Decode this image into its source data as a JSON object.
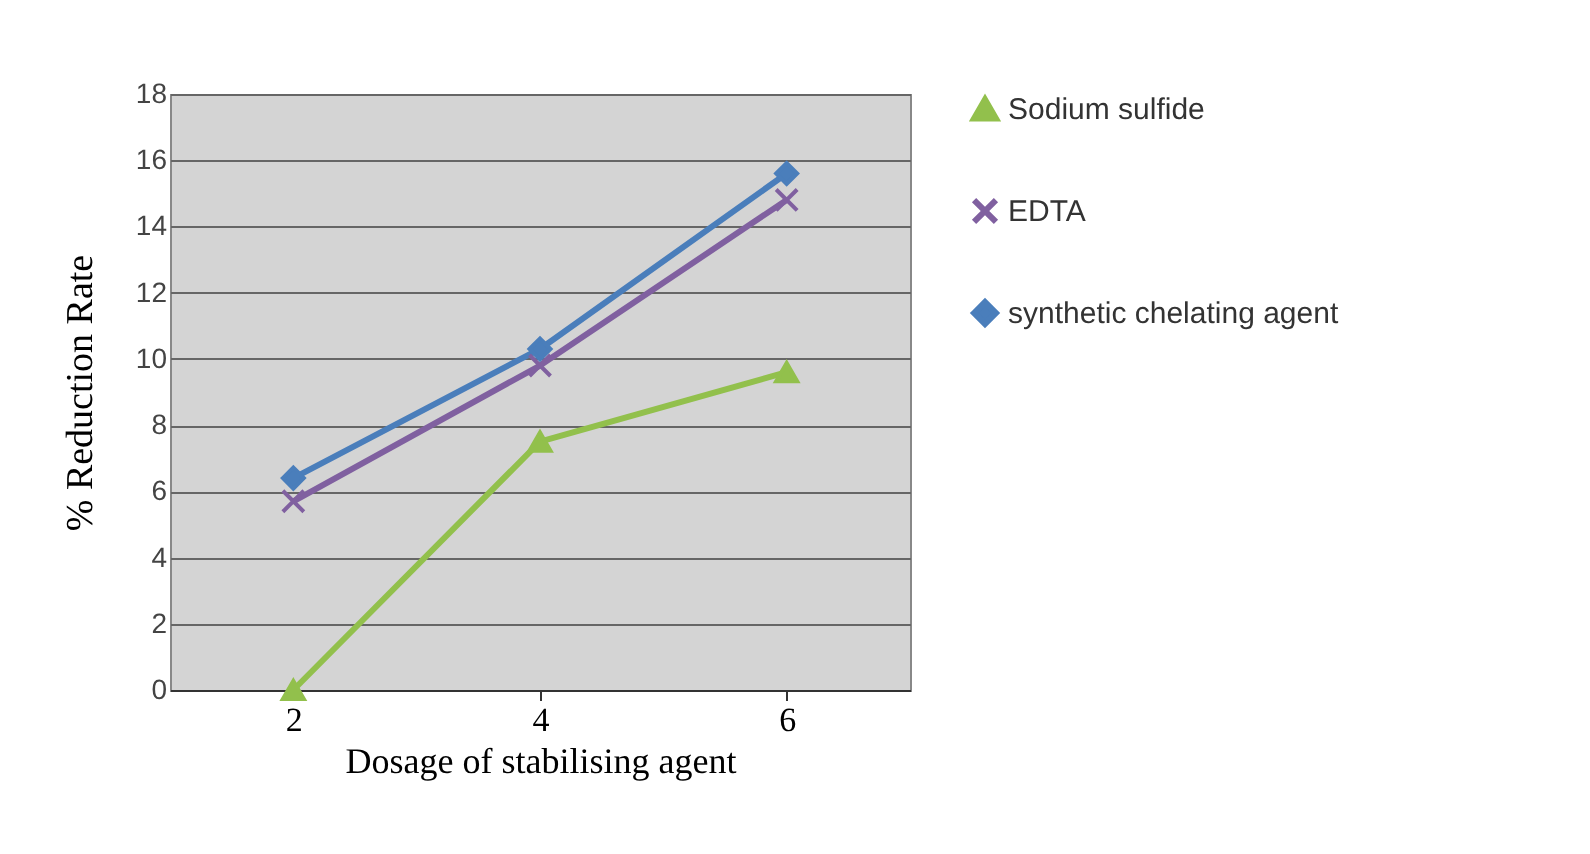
{
  "chart_data": {
    "type": "line",
    "xlabel": "Dosage of stabilising agent",
    "ylabel": "% Reduction Rate",
    "categories": [
      "2",
      "4",
      "6"
    ],
    "series": [
      {
        "name": "Sodium sulfide",
        "color": "#92c04c",
        "marker": "triangle",
        "values": [
          0,
          7.5,
          9.6
        ]
      },
      {
        "name": "EDTA",
        "color": "#8060a0",
        "marker": "cross",
        "values": [
          5.7,
          9.8,
          14.8
        ]
      },
      {
        "name": "synthetic chelating agent",
        "color": "#4a7ebb",
        "marker": "diamond",
        "values": [
          6.4,
          10.3,
          15.6
        ]
      }
    ],
    "ylim": [
      0,
      18
    ],
    "yticks": [
      0,
      2,
      4,
      6,
      8,
      10,
      12,
      14,
      16,
      18
    ],
    "grid": "y",
    "legend": "right"
  }
}
